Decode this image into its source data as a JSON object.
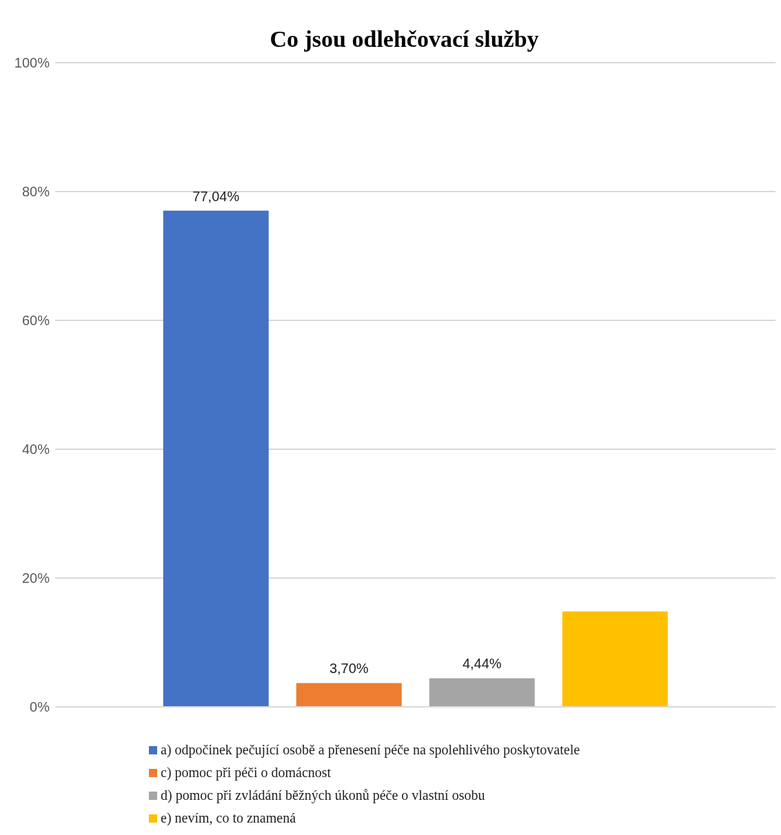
{
  "chart_data": {
    "type": "bar",
    "title": "Co jsou odlehčovací služby",
    "categories": [
      null
    ],
    "series": [
      {
        "name": "a) odpočinek pečující osobě a přenesení péče na spolehlivého poskytovatele",
        "color": "#4472c4",
        "values": [
          77.04
        ],
        "value_labels": [
          "77,04%"
        ]
      },
      {
        "name": "c) pomoc při péči o domácnost",
        "color": "#ed7d31",
        "values": [
          3.7
        ],
        "value_labels": [
          "3,70%"
        ]
      },
      {
        "name": "d) pomoc při zvládání běžných úkonů péče o vlastní osobu",
        "color": "#a5a5a5",
        "values": [
          4.44
        ],
        "value_labels": [
          "4,44%"
        ]
      },
      {
        "name": "e) nevím, co to znamená",
        "color": "#ffc000",
        "values": [
          14.8
        ],
        "value_labels": [
          null
        ]
      }
    ],
    "ylim": [
      0,
      100
    ],
    "yticks": [
      {
        "value": 0,
        "label": "0%"
      },
      {
        "value": 20,
        "label": "20%"
      },
      {
        "value": 40,
        "label": "40%"
      },
      {
        "value": 60,
        "label": "60%"
      },
      {
        "value": 80,
        "label": "80%"
      },
      {
        "value": 100,
        "label": "100%"
      }
    ],
    "grid": "y",
    "legend": "bottom",
    "tick_labels": "y"
  }
}
